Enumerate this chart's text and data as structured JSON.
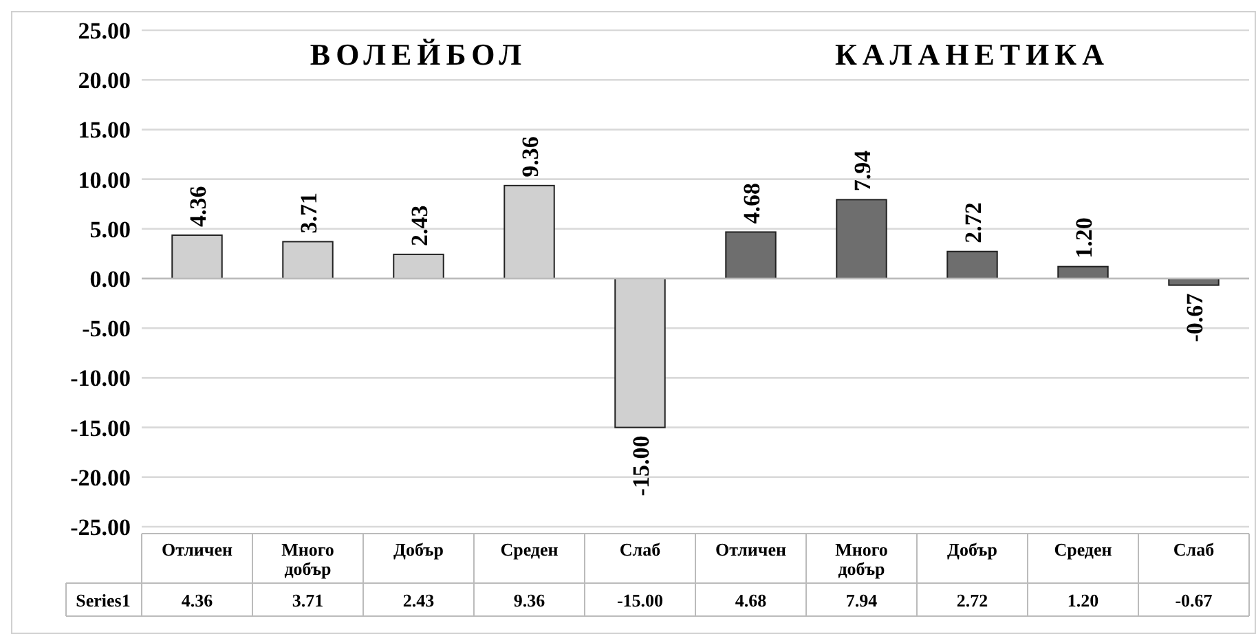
{
  "chart_data": {
    "type": "bar",
    "categories": [
      "Отличен",
      "Много добър",
      "Добър",
      "Среден",
      "Слаб",
      "Отличен",
      "Много добър",
      "Добър",
      "Среден",
      "Слаб"
    ],
    "series": [
      {
        "name": "Series1",
        "values": [
          4.36,
          3.71,
          2.43,
          9.36,
          -15.0,
          4.68,
          7.94,
          2.72,
          1.2,
          -0.67
        ],
        "value_labels": [
          "4.36",
          "3.71",
          "2.43",
          "9.36",
          "-15.00",
          "4.68",
          "7.94",
          "2.72",
          "1.20",
          "-0.67"
        ],
        "colors": [
          "#d0d0d0",
          "#d0d0d0",
          "#d0d0d0",
          "#d0d0d0",
          "#d0d0d0",
          "#6e6e6e",
          "#6e6e6e",
          "#6e6e6e",
          "#6e6e6e",
          "#6e6e6e"
        ]
      }
    ],
    "annotations": [
      "ВОЛЕЙБОЛ",
      "КАЛАНЕТИКА"
    ],
    "ylim": [
      -25,
      25
    ],
    "yticks": [
      {
        "value": -25,
        "label": "-25.00"
      },
      {
        "value": -20,
        "label": "-20.00"
      },
      {
        "value": -15,
        "label": "-15.00"
      },
      {
        "value": -10,
        "label": "-10.00"
      },
      {
        "value": -5,
        "label": "-5.00"
      },
      {
        "value": 0,
        "label": "0.00"
      },
      {
        "value": 5,
        "label": "5.00"
      },
      {
        "value": 10,
        "label": "10.00"
      },
      {
        "value": 15,
        "label": "15.00"
      },
      {
        "value": 20,
        "label": "20.00"
      },
      {
        "value": 25,
        "label": "25.00"
      }
    ],
    "grid": "y"
  }
}
